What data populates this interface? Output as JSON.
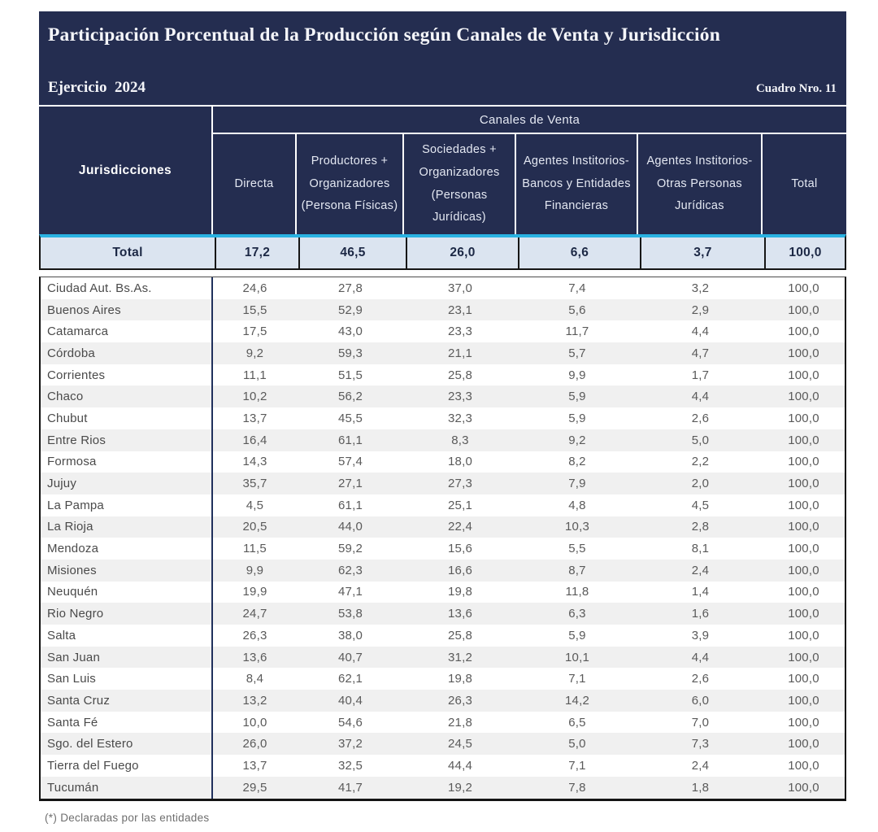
{
  "header": {
    "title": "Participación Porcentual de la Producción según Canales de Venta y Jurisdicción",
    "period": "Ejercicio  2024",
    "table_number": "Cuadro Nro. 11"
  },
  "table": {
    "corner_header": "Jurisdicciones",
    "group_header": "Canales de Venta",
    "columns": [
      "Directa",
      "Productores + Organizadores (Persona Físicas)",
      "Sociedades + Organizadores (Personas Jurídicas)",
      "Agentes Institorios- Bancos y Entidades Financieras",
      "Agentes Institorios- Otras Personas Jurídicas",
      "Total"
    ],
    "total_row": {
      "label": "Total",
      "values": [
        "17,2",
        "46,5",
        "26,0",
        "6,6",
        "3,7",
        "100,0"
      ]
    },
    "rows": [
      {
        "name": "Ciudad Aut. Bs.As.",
        "values": [
          "24,6",
          "27,8",
          "37,0",
          "7,4",
          "3,2",
          "100,0"
        ]
      },
      {
        "name": "Buenos Aires",
        "values": [
          "15,5",
          "52,9",
          "23,1",
          "5,6",
          "2,9",
          "100,0"
        ]
      },
      {
        "name": "Catamarca",
        "values": [
          "17,5",
          "43,0",
          "23,3",
          "11,7",
          "4,4",
          "100,0"
        ]
      },
      {
        "name": "Córdoba",
        "values": [
          "9,2",
          "59,3",
          "21,1",
          "5,7",
          "4,7",
          "100,0"
        ]
      },
      {
        "name": "Corrientes",
        "values": [
          "11,1",
          "51,5",
          "25,8",
          "9,9",
          "1,7",
          "100,0"
        ]
      },
      {
        "name": "Chaco",
        "values": [
          "10,2",
          "56,2",
          "23,3",
          "5,9",
          "4,4",
          "100,0"
        ]
      },
      {
        "name": "Chubut",
        "values": [
          "13,7",
          "45,5",
          "32,3",
          "5,9",
          "2,6",
          "100,0"
        ]
      },
      {
        "name": "Entre Rios",
        "values": [
          "16,4",
          "61,1",
          "8,3",
          "9,2",
          "5,0",
          "100,0"
        ]
      },
      {
        "name": "Formosa",
        "values": [
          "14,3",
          "57,4",
          "18,0",
          "8,2",
          "2,2",
          "100,0"
        ]
      },
      {
        "name": "Jujuy",
        "values": [
          "35,7",
          "27,1",
          "27,3",
          "7,9",
          "2,0",
          "100,0"
        ]
      },
      {
        "name": "La Pampa",
        "values": [
          "4,5",
          "61,1",
          "25,1",
          "4,8",
          "4,5",
          "100,0"
        ]
      },
      {
        "name": "La Rioja",
        "values": [
          "20,5",
          "44,0",
          "22,4",
          "10,3",
          "2,8",
          "100,0"
        ]
      },
      {
        "name": "Mendoza",
        "values": [
          "11,5",
          "59,2",
          "15,6",
          "5,5",
          "8,1",
          "100,0"
        ]
      },
      {
        "name": "Misiones",
        "values": [
          "9,9",
          "62,3",
          "16,6",
          "8,7",
          "2,4",
          "100,0"
        ]
      },
      {
        "name": "Neuquén",
        "values": [
          "19,9",
          "47,1",
          "19,8",
          "11,8",
          "1,4",
          "100,0"
        ]
      },
      {
        "name": "Rio Negro",
        "values": [
          "24,7",
          "53,8",
          "13,6",
          "6,3",
          "1,6",
          "100,0"
        ]
      },
      {
        "name": "Salta",
        "values": [
          "26,3",
          "38,0",
          "25,8",
          "5,9",
          "3,9",
          "100,0"
        ]
      },
      {
        "name": "San Juan",
        "values": [
          "13,6",
          "40,7",
          "31,2",
          "10,1",
          "4,4",
          "100,0"
        ]
      },
      {
        "name": "San Luis",
        "values": [
          "8,4",
          "62,1",
          "19,8",
          "7,1",
          "2,6",
          "100,0"
        ]
      },
      {
        "name": "Santa Cruz",
        "values": [
          "13,2",
          "40,4",
          "26,3",
          "14,2",
          "6,0",
          "100,0"
        ]
      },
      {
        "name": "Santa Fé",
        "values": [
          "10,0",
          "54,6",
          "21,8",
          "6,5",
          "7,0",
          "100,0"
        ]
      },
      {
        "name": "Sgo. del Estero",
        "values": [
          "26,0",
          "37,2",
          "24,5",
          "5,0",
          "7,3",
          "100,0"
        ]
      },
      {
        "name": "Tierra del Fuego",
        "values": [
          "13,7",
          "32,5",
          "44,4",
          "7,1",
          "2,4",
          "100,0"
        ]
      },
      {
        "name": "Tucumán",
        "values": [
          "29,5",
          "41,7",
          "19,2",
          "7,8",
          "1,8",
          "100,0"
        ]
      }
    ]
  },
  "footnote": "(*) Declaradas por las entidades",
  "colors": {
    "header_navy": "#242d50",
    "accent_cyan": "#29b2e2",
    "total_row_bg": "#dbe4f0",
    "stripe_gray": "#f0f0f0",
    "border_black": "#141414"
  }
}
